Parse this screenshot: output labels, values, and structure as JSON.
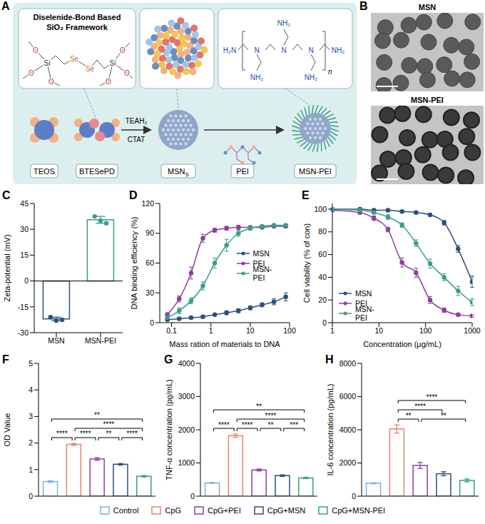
{
  "panels": [
    "A",
    "B",
    "C",
    "D",
    "E",
    "F",
    "G",
    "H"
  ],
  "diagram": {
    "framework_title": "Diselenide-Bond Based SiO₂ Framework",
    "molecule_atoms": [
      "O",
      "O",
      "O",
      "Si",
      "Se",
      "Se",
      "Si",
      "O",
      "O",
      "O"
    ],
    "pei_main_chain": [
      "H₂N",
      "N",
      "N",
      "N",
      "NH₂"
    ],
    "pei_branches": [
      "NH₂",
      "NH₂",
      "NH₂"
    ],
    "pei_repeat": "n",
    "reagents": [
      "TEAH₂",
      "CTAT"
    ],
    "teos": "TEOS",
    "btesepd": "BTESePD",
    "msns": {
      "text": "MSN",
      "subscript": "S"
    },
    "pei": "PEI",
    "msn_pei": "MSN-PEI"
  },
  "images": {
    "titles": [
      "MSN",
      "MSN-PEI"
    ]
  },
  "chart_data": [
    {
      "type": "bar",
      "y_label": "Zeta-potential (mV)",
      "categories": [
        "MSN",
        "MSN-PEI"
      ],
      "values": [
        -22,
        35.5
      ],
      "errors": [
        1,
        2
      ],
      "points": [
        [
          -21,
          -23,
          -22.5
        ],
        [
          37.5,
          35,
          33.5
        ]
      ],
      "colors": [
        "#2d4f7c",
        "#3a9e8a"
      ],
      "ylim": [
        -30,
        45
      ],
      "yticks": [
        -30,
        -15,
        0,
        15,
        30,
        45
      ]
    },
    {
      "type": "line",
      "y_label": "DNA binding efficiency (%)",
      "x_label": "Mass ration of materials to DNA",
      "log": "x",
      "x": [
        0.078,
        0.156,
        0.313,
        0.625,
        1.25,
        2.5,
        5,
        10,
        20,
        40,
        80
      ],
      "series": [
        {
          "name": "MSN",
          "color": "#2d4f7c",
          "values": [
            3,
            4,
            5,
            6,
            8,
            10,
            12,
            15,
            18,
            21,
            26
          ],
          "errors": [
            1,
            1,
            1,
            1,
            1,
            2,
            2,
            2,
            2,
            3,
            4
          ]
        },
        {
          "name": "PEI",
          "color": "#8e3e9e",
          "values": [
            8,
            24,
            50,
            85,
            93,
            95,
            96,
            96,
            96,
            97,
            97
          ],
          "errors": [
            2,
            3,
            6,
            4,
            2,
            2,
            2,
            1,
            1,
            1,
            1
          ]
        },
        {
          "name": "MSN-PEI",
          "color": "#3a9e8a",
          "values": [
            5,
            12,
            22,
            37,
            60,
            78,
            90,
            95,
            97,
            98,
            98
          ],
          "errors": [
            2,
            3,
            3,
            4,
            5,
            6,
            3,
            2,
            1,
            1,
            1
          ]
        }
      ],
      "xlim": [
        0.05,
        100
      ],
      "xticks": [
        0.1,
        1,
        10,
        100
      ],
      "ylim": [
        0,
        120
      ],
      "yticks": [
        0,
        30,
        60,
        90,
        120
      ],
      "legend": "right",
      "marker": "circle"
    },
    {
      "type": "line",
      "y_label": "Cell viability (% of con)",
      "x_label": "Concentration (μg/mL)",
      "log": "x",
      "x": [
        1,
        3.9,
        7.8,
        15.6,
        31.25,
        62.5,
        125,
        250,
        500,
        1000
      ],
      "series": [
        {
          "name": "MSN",
          "color": "#2d4f7c",
          "values": [
            100,
            100,
            99,
            99,
            98,
            97,
            95,
            88,
            65,
            36
          ],
          "errors": [
            1,
            1,
            1,
            1,
            1,
            1,
            1,
            2,
            3,
            5
          ]
        },
        {
          "name": "PEI",
          "color": "#8e3e9e",
          "values": [
            99,
            97,
            92,
            82,
            53,
            44,
            20,
            11,
            7,
            6
          ],
          "errors": [
            1,
            1,
            2,
            2,
            4,
            4,
            3,
            2,
            1,
            1
          ]
        },
        {
          "name": "MSN-PEI",
          "color": "#3a9e8a",
          "values": [
            100,
            99,
            97,
            93,
            86,
            70,
            52,
            40,
            28,
            18
          ],
          "errors": [
            1,
            1,
            1,
            2,
            2,
            3,
            4,
            3,
            4,
            3
          ]
        }
      ],
      "xlim": [
        1,
        1000
      ],
      "xticks": [
        1,
        10,
        100,
        1000
      ],
      "ylim": [
        0,
        105
      ],
      "yticks": [
        0,
        20,
        40,
        60,
        80,
        100
      ],
      "legend": "lower left",
      "marker": "circle"
    },
    {
      "type": "bar",
      "y_label": "OD Value",
      "categories": [
        "Control",
        "CpG",
        "CpG+PEI",
        "CpG+MSN",
        "CpG+MSN-PEI"
      ],
      "values": [
        0.55,
        1.95,
        1.4,
        1.2,
        0.75
      ],
      "errors": [
        0.03,
        0.04,
        0.05,
        0.03,
        0.03
      ],
      "colors": [
        "#7fb0d8",
        "#e8806f",
        "#8e3e9e",
        "#2d4f7c",
        "#3a9e8a"
      ],
      "ylim": [
        0,
        5
      ],
      "yticks": [
        0,
        1,
        2,
        3,
        4,
        5
      ],
      "tick_labels": "y",
      "comparisons": [
        {
          "from": "CpG",
          "to": "CpG+PEI",
          "label": "****"
        },
        {
          "from": "CpG+PEI",
          "to": "CpG+MSN",
          "label": "**"
        },
        {
          "from": "CpG+MSN",
          "to": "CpG+MSN-PEI",
          "label": "****"
        },
        {
          "from": "Control",
          "to": "CpG",
          "label": "****"
        },
        {
          "from": "CpG",
          "to": "CpG+MSN-PEI",
          "label": "****"
        },
        {
          "from": "Control",
          "to": "CpG+MSN-PEI",
          "label": "**"
        }
      ]
    },
    {
      "type": "bar",
      "y_label": "TNF-α concentration (pg/mL)",
      "categories": [
        "Control",
        "CpG",
        "CpG+PEI",
        "CpG+MSN",
        "CpG+MSN-PEI"
      ],
      "values": [
        400,
        1820,
        790,
        620,
        550
      ],
      "errors": [
        15,
        50,
        30,
        25,
        20
      ],
      "colors": [
        "#7fb0d8",
        "#e8806f",
        "#8e3e9e",
        "#2d4f7c",
        "#3a9e8a"
      ],
      "ylim": [
        0,
        4000
      ],
      "yticks": [
        0,
        1000,
        2000,
        3000,
        4000
      ],
      "tick_labels": "y",
      "comparisons": [
        {
          "from": "CpG",
          "to": "CpG+PEI",
          "label": "****"
        },
        {
          "from": "CpG+PEI",
          "to": "CpG+MSN",
          "label": "**"
        },
        {
          "from": "CpG+MSN",
          "to": "CpG+MSN-PEI",
          "label": "***"
        },
        {
          "from": "Control",
          "to": "CpG",
          "label": "****"
        },
        {
          "from": "CpG",
          "to": "CpG+MSN-PEI",
          "label": "****"
        },
        {
          "from": "Control",
          "to": "CpG+MSN-PEI",
          "label": "**"
        }
      ]
    },
    {
      "type": "bar",
      "y_label": "IL-6 concentration (pg/mL)",
      "categories": [
        "Control",
        "CpG",
        "CpG+PEI",
        "CpG+MSN",
        "CpG+MSN-PEI"
      ],
      "values": [
        780,
        4050,
        1850,
        1350,
        950
      ],
      "errors": [
        30,
        250,
        180,
        120,
        90
      ],
      "colors": [
        "#7fb0d8",
        "#e8806f",
        "#8e3e9e",
        "#2d4f7c",
        "#3a9e8a"
      ],
      "ylim": [
        0,
        8000
      ],
      "yticks": [
        0,
        2000,
        4000,
        6000,
        8000
      ],
      "tick_labels": "y",
      "comparisons": [
        {
          "from": "CpG+PEI",
          "to": "CpG+MSN-PEI",
          "label": "**"
        },
        {
          "from": "CpG",
          "to": "CpG+PEI",
          "label": "**"
        },
        {
          "from": "CpG",
          "to": "CpG+MSN",
          "label": "****"
        },
        {
          "from": "CpG",
          "to": "CpG+MSN-PEI",
          "label": "****"
        }
      ]
    }
  ],
  "figure_legend": {
    "legend": "bottom",
    "labels": [
      "Control",
      "CpG",
      "CpG+PEI",
      "CpG+MSN",
      "CpG+MSN-PEI"
    ],
    "colors": [
      "#7fb0d8",
      "#e8806f",
      "#8e3e9e",
      "#2d4f7c",
      "#3a9e8a"
    ]
  }
}
